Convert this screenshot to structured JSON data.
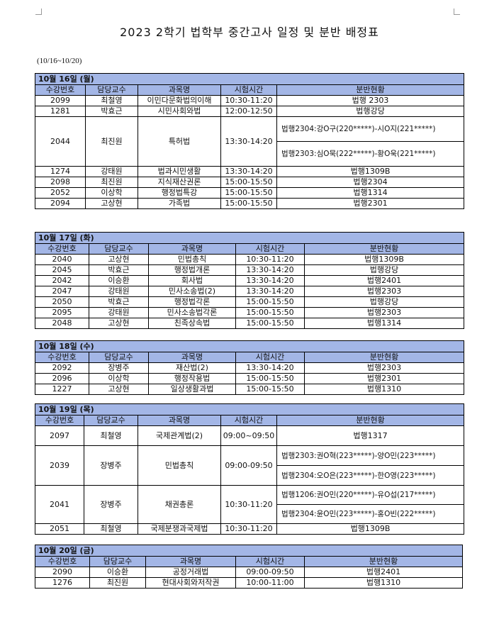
{
  "title": "2023 2학기 법학부 중간고사 일정 및 분반 배정표",
  "date_range": "(10/16~10/20)",
  "columns": [
    "수강번호",
    "담당교수",
    "과목명",
    "시험시간",
    "분반현황"
  ],
  "tables": [
    {
      "date": "10월 16일 (월)",
      "rows": [
        {
          "id": "2099",
          "professor": "최철영",
          "course": "이민다문화법의이해",
          "time": "10:30-11:20",
          "rooms": [
            "법행 2303"
          ]
        },
        {
          "id": "1281",
          "professor": "박효근",
          "course": "시민사회와법",
          "time": "12:00-12:50",
          "rooms": [
            "법행강당"
          ]
        },
        {
          "id": "2044",
          "professor": "최진원",
          "course": "특허법",
          "time": "13:30-14:20",
          "rooms": [
            "법행2304:강O구(220*****)-시O지(221*****)",
            "법행2303:심O묵(222*****)-황O욱(221*****)"
          ]
        },
        {
          "id": "1274",
          "professor": "강태원",
          "course": "법과시민생활",
          "time": "13:30-14:20",
          "rooms": [
            "법행1309B"
          ]
        },
        {
          "id": "2098",
          "professor": "최진원",
          "course": "지식재산권론",
          "time": "15:00-15:50",
          "rooms": [
            "법행2304"
          ]
        },
        {
          "id": "2052",
          "professor": "이상학",
          "course": "행정법특강",
          "time": "15:00-15:50",
          "rooms": [
            "법행1314"
          ]
        },
        {
          "id": "2094",
          "professor": "고상현",
          "course": "가족법",
          "time": "15:00-15:50",
          "rooms": [
            "법행2301"
          ]
        }
      ]
    },
    {
      "date": "10월 17일 (화)",
      "rows": [
        {
          "id": "2040",
          "professor": "고상현",
          "course": "민법총칙",
          "time": "10:30-11:20",
          "rooms": [
            "법행1309B"
          ]
        },
        {
          "id": "2045",
          "professor": "박효근",
          "course": "행정법개론",
          "time": "13:30-14:20",
          "rooms": [
            "법행강당"
          ]
        },
        {
          "id": "2042",
          "professor": "이승환",
          "course": "회사법",
          "time": "13:30-14:20",
          "rooms": [
            "법행2401"
          ]
        },
        {
          "id": "2047",
          "professor": "강태원",
          "course": "민사소송법(2)",
          "time": "13:30-14:20",
          "rooms": [
            "법행2303"
          ]
        },
        {
          "id": "2050",
          "professor": "박효근",
          "course": "행정법각론",
          "time": "15:00-15:50",
          "rooms": [
            "법행강당"
          ]
        },
        {
          "id": "2095",
          "professor": "강태원",
          "course": "민사소송법각론",
          "time": "15:00-15:50",
          "rooms": [
            "법행2303"
          ]
        },
        {
          "id": "2048",
          "professor": "고상현",
          "course": "친족상속법",
          "time": "15:00-15:50",
          "rooms": [
            "법행1314"
          ]
        }
      ]
    },
    {
      "date": "10월 18일 (수)",
      "rows": [
        {
          "id": "2092",
          "professor": "장병주",
          "course": "재산법(2)",
          "time": "13:30-14:20",
          "rooms": [
            "법행2303"
          ]
        },
        {
          "id": "2096",
          "professor": "이상학",
          "course": "행정작용법",
          "time": "15:00-15:50",
          "rooms": [
            "법행2301"
          ]
        },
        {
          "id": "1227",
          "professor": "고상현",
          "course": "일상생활과법",
          "time": "15:00-15:50",
          "rooms": [
            "법행1310"
          ]
        }
      ]
    },
    {
      "date": "10월 19일 (목)",
      "rows": [
        {
          "id": "2097",
          "professor": "최철영",
          "course": "국제관계법(2)",
          "time": "09:00~09:50",
          "rooms": [
            "법행1317"
          ]
        },
        {
          "id": "2039",
          "professor": "장병주",
          "course": "민법총칙",
          "time": "09:00-09:50",
          "rooms": [
            "법행2303:권O혁(223*****)-양O민(223*****)",
            "법행2304:오O은(223*****)-한O영(223*****)"
          ]
        },
        {
          "id": "2041",
          "professor": "장병주",
          "course": "채권총론",
          "time": "10:30-11:20",
          "rooms": [
            "법행1206:권O민(220*****)-유O섭(217*****)",
            "법행2304:윤O민(223*****)-홍O빈(222*****)"
          ]
        },
        {
          "id": "2051",
          "professor": "최철영",
          "course": "국제분쟁과국제법",
          "time": "10:30-11:20",
          "rooms": [
            "법행1309B"
          ]
        }
      ]
    },
    {
      "date": "10월 20일 (금)",
      "rows": [
        {
          "id": "2090",
          "professor": "이승환",
          "course": "공정거래법",
          "time": "09:00-09:50",
          "rooms": [
            "법행2401"
          ]
        },
        {
          "id": "1276",
          "professor": "최진원",
          "course": "현대사회와저작권",
          "time": "10:00-11:00",
          "rooms": [
            "법행1310"
          ]
        }
      ]
    }
  ],
  "colors": {
    "header_fill": "#a3b6e6",
    "border": "#000000"
  }
}
